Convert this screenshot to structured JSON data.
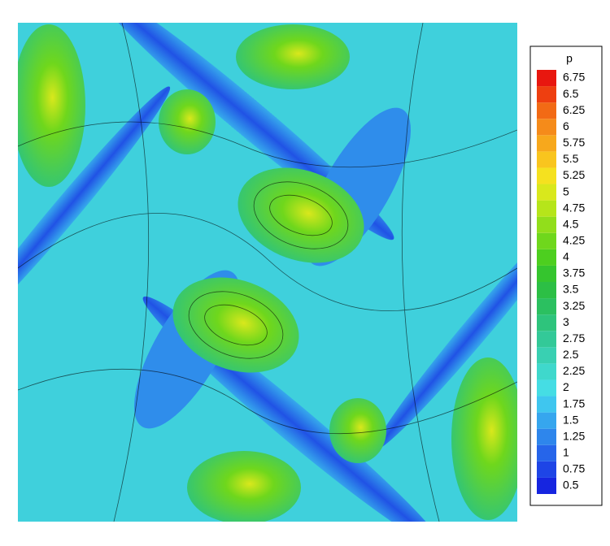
{
  "chart_data": {
    "type": "contour",
    "colorbar": {
      "title": "p",
      "ticks": [
        0.5,
        0.75,
        1,
        1.25,
        1.5,
        1.75,
        2,
        2.25,
        2.5,
        2.75,
        3,
        3.25,
        3.5,
        3.75,
        4,
        4.25,
        4.5,
        4.75,
        5,
        5.25,
        5.5,
        5.75,
        6,
        6.25,
        6.5,
        6.75
      ],
      "colors": [
        "#1625e0",
        "#1e45e6",
        "#2665ea",
        "#2e86ec",
        "#36a6ee",
        "#3fc6ef",
        "#45dde4",
        "#3fd8cc",
        "#39d0b2",
        "#33c998",
        "#2ec47c",
        "#2bc060",
        "#2cbf45",
        "#35c52e",
        "#4dcf1f",
        "#6fd71c",
        "#92de1b",
        "#b6e51a",
        "#d9e81c",
        "#f5e11f",
        "#f9c51e",
        "#f7a81c",
        "#f58b1a",
        "#f26a15",
        "#ee3f10",
        "#e8170f"
      ]
    }
  }
}
